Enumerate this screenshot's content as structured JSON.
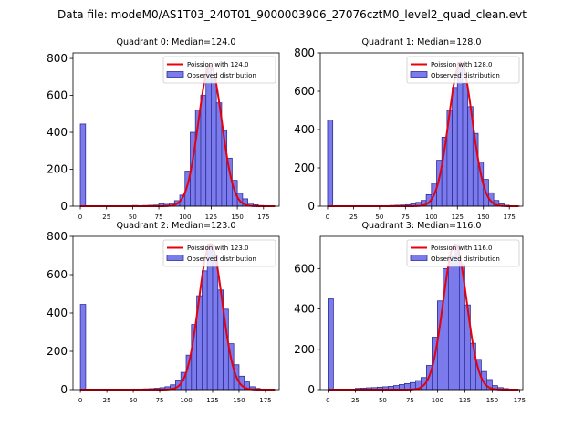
{
  "figure_title": "Data file: modeM0/AS1T03_240T01_9000003906_27076cztM0_level2_quad_clean.evt",
  "colors": {
    "bar_fill": "#7b7bec",
    "bar_edge": "#2f2f9a",
    "poisson_line": "#e8000b",
    "axes": "#000000"
  },
  "legend_labels_template": {
    "observed": "Observed distribution"
  },
  "chart_data": [
    {
      "type": "bar",
      "title": "Quadrant 0: Median=124.0",
      "legend": {
        "poisson": "Poission with 124.0",
        "observed": "Observed distribution",
        "position": "upper-right"
      },
      "mean": 124.0,
      "peak": 760,
      "xlim": [
        -7,
        190
      ],
      "ylim": [
        0,
        830
      ],
      "xticks": [
        0,
        25,
        50,
        75,
        100,
        125,
        150,
        175
      ],
      "yticks": [
        0,
        200,
        400,
        600,
        800
      ],
      "bins": [
        0,
        45,
        50,
        55,
        60,
        65,
        70,
        75,
        80,
        85,
        90,
        95,
        100,
        105,
        110,
        115,
        120,
        125,
        130,
        135,
        140,
        145,
        150,
        155,
        160,
        165,
        170,
        175,
        180
      ],
      "values": [
        445,
        3,
        4,
        3,
        4,
        5,
        6,
        14,
        10,
        15,
        30,
        60,
        190,
        400,
        520,
        600,
        760,
        700,
        560,
        410,
        260,
        140,
        70,
        40,
        18,
        8,
        4,
        2,
        1
      ]
    },
    {
      "type": "bar",
      "title": "Quadrant 1: Median=128.0",
      "legend": {
        "poisson": "Poission with 128.0",
        "observed": "Observed distribution",
        "position": "upper-right"
      },
      "mean": 128.0,
      "peak": 750,
      "xlim": [
        -7,
        188
      ],
      "ylim": [
        0,
        800
      ],
      "xticks": [
        0,
        25,
        50,
        75,
        100,
        125,
        150,
        175
      ],
      "yticks": [
        0,
        200,
        400,
        600,
        800
      ],
      "bins": [
        0,
        55,
        60,
        65,
        70,
        75,
        80,
        85,
        90,
        95,
        100,
        105,
        110,
        115,
        120,
        125,
        130,
        135,
        140,
        145,
        150,
        155,
        160,
        165,
        170,
        175,
        180
      ],
      "values": [
        450,
        3,
        4,
        5,
        6,
        8,
        12,
        20,
        30,
        60,
        120,
        240,
        360,
        500,
        620,
        750,
        640,
        520,
        380,
        230,
        140,
        70,
        30,
        12,
        5,
        2,
        1
      ]
    },
    {
      "type": "bar",
      "title": "Quadrant 2: Median=123.0",
      "legend": {
        "poisson": "Poission with 123.0",
        "observed": "Observed distribution",
        "position": "upper-right"
      },
      "mean": 123.0,
      "peak": 760,
      "xlim": [
        -7,
        188
      ],
      "ylim": [
        0,
        800
      ],
      "xticks": [
        0,
        25,
        50,
        75,
        100,
        125,
        150,
        175
      ],
      "yticks": [
        0,
        200,
        400,
        600,
        800
      ],
      "bins": [
        0,
        50,
        55,
        60,
        65,
        70,
        75,
        80,
        85,
        90,
        95,
        100,
        105,
        110,
        115,
        120,
        125,
        130,
        135,
        140,
        145,
        150,
        155,
        160,
        165,
        170,
        175
      ],
      "values": [
        445,
        3,
        3,
        4,
        5,
        7,
        10,
        15,
        25,
        50,
        90,
        180,
        340,
        490,
        620,
        760,
        700,
        520,
        420,
        240,
        130,
        70,
        40,
        15,
        6,
        3,
        1
      ]
    },
    {
      "type": "bar",
      "title": "Quadrant 3: Median=116.0",
      "legend": {
        "poisson": "Poission with 116.0",
        "observed": "Observed distribution",
        "position": "upper-right"
      },
      "mean": 116.0,
      "peak": 720,
      "xlim": [
        -7,
        178
      ],
      "ylim": [
        0,
        760
      ],
      "xticks": [
        0,
        25,
        50,
        75,
        100,
        125,
        150,
        175
      ],
      "yticks": [
        0,
        200,
        400,
        600
      ],
      "bins": [
        0,
        25,
        30,
        35,
        40,
        45,
        50,
        55,
        60,
        65,
        70,
        75,
        80,
        85,
        90,
        95,
        100,
        105,
        110,
        115,
        120,
        125,
        130,
        135,
        140,
        145,
        150,
        155,
        160,
        165,
        170
      ],
      "values": [
        450,
        6,
        7,
        9,
        10,
        12,
        14,
        16,
        20,
        25,
        30,
        35,
        45,
        60,
        120,
        260,
        440,
        600,
        660,
        720,
        620,
        420,
        230,
        150,
        90,
        50,
        20,
        10,
        5,
        2,
        1
      ]
    }
  ]
}
